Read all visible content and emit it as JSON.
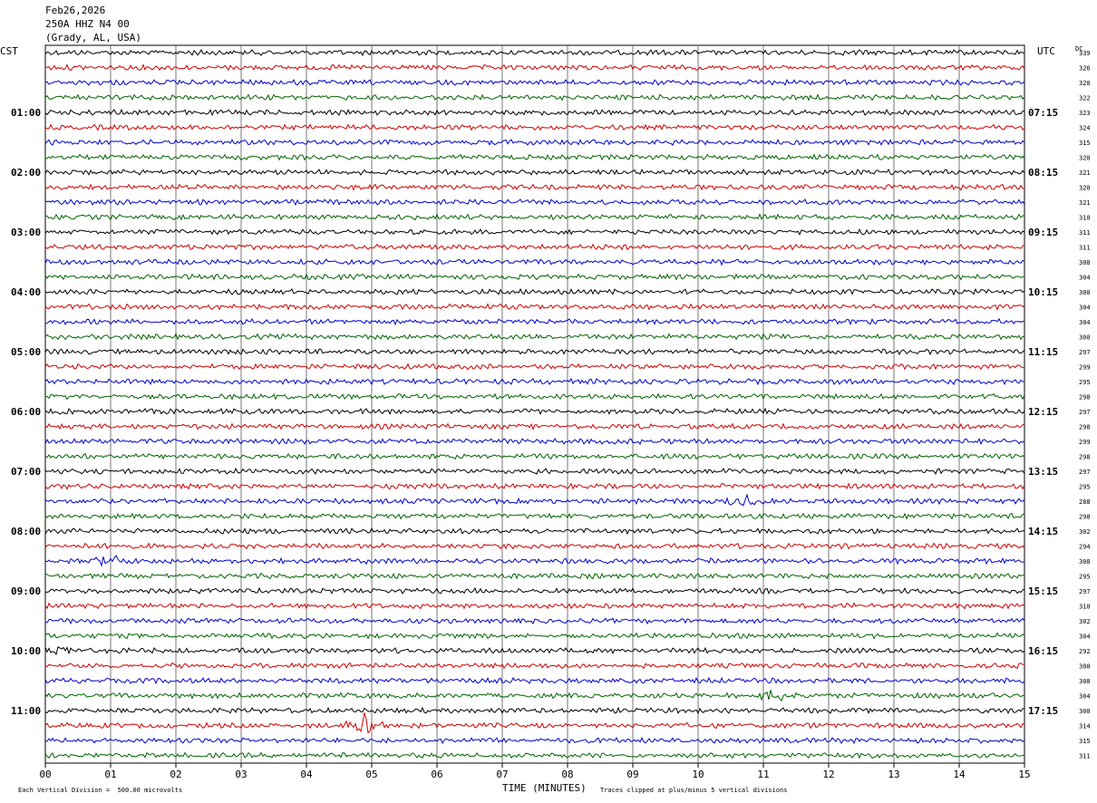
{
  "header": {
    "date": "Feb26,2026",
    "station": "250A HHZ N4 00",
    "location": "(Grady, AL, USA)",
    "left_timezone": "CST",
    "right_timezone": "UTC",
    "dc_label": "DC"
  },
  "footer": {
    "xlabel": "TIME (MINUTES)",
    "scale_note": "Each Vertical Division =  500.00 microvolts",
    "clip_note": "Traces clipped at plus/minus 5 vertical divisions"
  },
  "chart_data": {
    "type": "line",
    "title": "250A HHZ N4 00 (Grady, AL, USA) Feb26,2026",
    "xlabel": "TIME (MINUTES)",
    "ylabel": "",
    "xlim": [
      0,
      15
    ],
    "x_ticks": [
      "00",
      "01",
      "02",
      "03",
      "04",
      "05",
      "06",
      "07",
      "08",
      "09",
      "10",
      "11",
      "12",
      "13",
      "14",
      "15"
    ],
    "left_hour_labels": [
      "01:00",
      "02:00",
      "03:00",
      "04:00",
      "05:00",
      "06:00",
      "07:00",
      "08:00",
      "09:00",
      "10:00",
      "11:00"
    ],
    "right_hour_labels": [
      "07:15",
      "08:15",
      "09:15",
      "10:15",
      "11:15",
      "12:15",
      "13:15",
      "14:15",
      "15:15",
      "16:15",
      "17:15"
    ],
    "trace_count": 48,
    "trace_colors": [
      "#000000",
      "#d00000",
      "#0000cc",
      "#006400"
    ],
    "dc_offsets": [
      339,
      326,
      320,
      322,
      323,
      324,
      315,
      320,
      321,
      320,
      321,
      310,
      311,
      311,
      308,
      304,
      300,
      304,
      304,
      300,
      297,
      299,
      295,
      298,
      297,
      298,
      299,
      298,
      297,
      295,
      288,
      298,
      302,
      294,
      308,
      295,
      297,
      310,
      302,
      304,
      292,
      308,
      308,
      304,
      300,
      314,
      315,
      311
    ],
    "grid": true,
    "amplitude_scale_microvolts_per_division": 500.0,
    "clip_divisions": 5,
    "events": [
      {
        "trace": 45,
        "minute": 4.9,
        "description": "large burst"
      },
      {
        "trace": 34,
        "minute": 1.0,
        "description": "burst"
      },
      {
        "trace": 40,
        "minute": 0.2,
        "description": "burst"
      },
      {
        "trace": 30,
        "minute": 10.7,
        "description": "burst"
      },
      {
        "trace": 43,
        "minute": 11.2,
        "description": "burst"
      }
    ]
  }
}
